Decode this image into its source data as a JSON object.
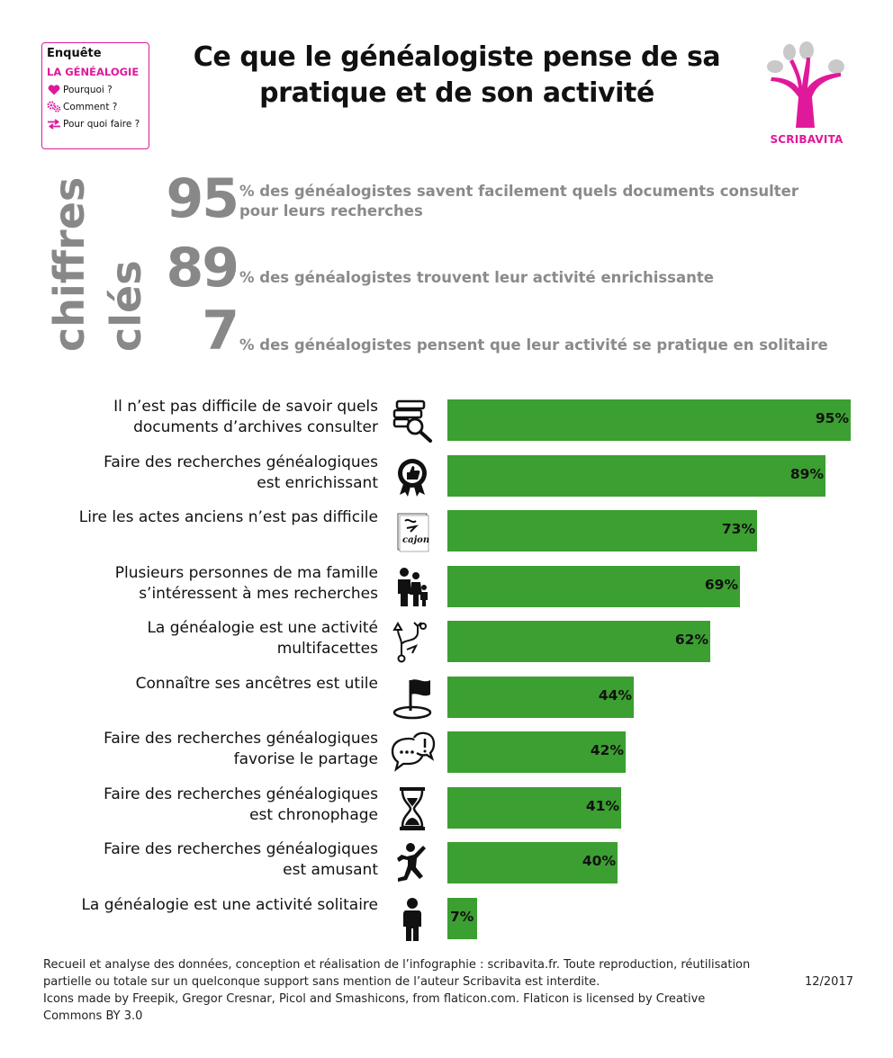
{
  "survey_box": {
    "title": "Enquête",
    "subtitle": "LA GÉNÉALOGIE",
    "items": [
      {
        "icon": "heart-icon",
        "label": "Pourquoi ?"
      },
      {
        "icon": "gears-icon",
        "label": "Comment ?"
      },
      {
        "icon": "arrows-icon",
        "label": "Pour quoi faire ?"
      }
    ]
  },
  "title_line1": "Ce que le généalogiste pense de sa",
  "title_line2": "pratique et de son activité",
  "logo": {
    "text": "SCRIBAVITA",
    "color": "#e0199a"
  },
  "key_figures": {
    "label_line1": "chiffres",
    "label_line2": "clés",
    "items": [
      {
        "value": "95",
        "text_line1": "% des généalogistes savent facilement quels documents consulter",
        "text_line2": "pour leurs recherches"
      },
      {
        "value": "89",
        "text_line1": "% des généalogistes trouvent leur activité enrichissante",
        "text_line2": ""
      },
      {
        "value": "7",
        "text_line1": "% des généalogistes pensent que leur activité se pratique en solitaire",
        "text_line2": ""
      }
    ]
  },
  "chart_data": {
    "type": "bar",
    "orientation": "horizontal",
    "unit": "%",
    "xlim": [
      0,
      100
    ],
    "bar_color": "#3c9f31",
    "categories": [
      {
        "line1": "Il n’est pas difficile de savoir quels",
        "line2": "documents d’archives consulter",
        "icon": "archive-search-icon",
        "value": 95,
        "label": "95%"
      },
      {
        "line1": "Faire des recherches généalogiques",
        "line2": "est enrichissant",
        "icon": "thumbs-up-badge-icon",
        "value": 89,
        "label": "89%"
      },
      {
        "line1": "Lire les actes anciens n’est pas difficile",
        "line2": "",
        "icon": "old-document-icon",
        "value": 73,
        "label": "73%"
      },
      {
        "line1": "Plusieurs personnes de ma famille",
        "line2": "s’intéressent à mes recherches",
        "icon": "family-icon",
        "value": 69,
        "label": "69%"
      },
      {
        "line1": "La généalogie est une activité",
        "line2": "multifacettes",
        "icon": "branching-arrows-icon",
        "value": 62,
        "label": "62%"
      },
      {
        "line1": "Connaître ses ancêtres est utile",
        "line2": "",
        "icon": "flag-icon",
        "value": 44,
        "label": "44%"
      },
      {
        "line1": "Faire des recherches généalogiques",
        "line2": "favorise le partage",
        "icon": "speech-bubbles-icon",
        "value": 42,
        "label": "42%"
      },
      {
        "line1": "Faire des recherches généalogiques",
        "line2": "est chronophage",
        "icon": "hourglass-icon",
        "value": 41,
        "label": "41%"
      },
      {
        "line1": "Faire des recherches généalogiques",
        "line2": "est amusant",
        "icon": "jumping-person-icon",
        "value": 40,
        "label": "40%"
      },
      {
        "line1": "La généalogie est une activité solitaire",
        "line2": "",
        "icon": "person-icon",
        "value": 7,
        "label": "7%"
      }
    ]
  },
  "footer": {
    "line1": "Recueil et analyse des données, conception et réalisation de l’infographie : scribavita.fr. Toute reproduction, réutilisation",
    "line2": "partielle ou totale sur un quelconque support sans mention de l’auteur Scribavita est interdite.",
    "date": "12/2017",
    "line3": "Icons made by Freepik, Gregor Cresnar, Picol and Smashicons, from flaticon.com. Flaticon is licensed by Creative",
    "line4": "Commons BY 3.0"
  }
}
